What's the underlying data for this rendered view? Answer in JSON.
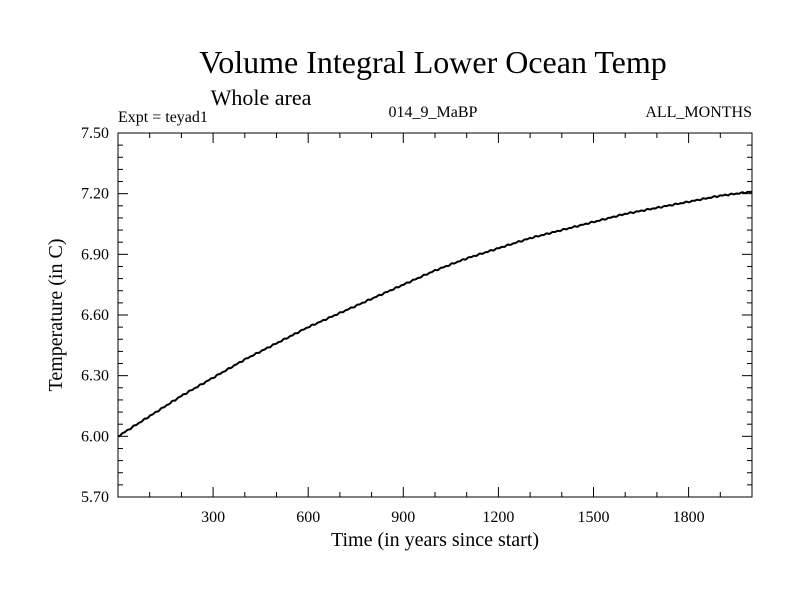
{
  "chart_data": {
    "type": "line",
    "title": "Volume Integral Lower Ocean Temp",
    "subtitle": "Whole area",
    "header_left": "Expt = teyad1",
    "header_center": "014_9_MaBP",
    "header_right": "ALL_MONTHS",
    "xlabel": "Time (in years since start)",
    "ylabel": "Temperature (in C)",
    "xlim": [
      0,
      2000
    ],
    "ylim": [
      5.7,
      7.5
    ],
    "x_ticks": [
      300,
      600,
      900,
      1200,
      1500,
      1800
    ],
    "x_tick_labels": [
      "300",
      "600",
      "900",
      "1200",
      "1500",
      "1800"
    ],
    "y_ticks": [
      5.7,
      6.0,
      6.3,
      6.6,
      6.9,
      7.2,
      7.5
    ],
    "y_tick_labels": [
      "5.70",
      "6.00",
      "6.30",
      "6.60",
      "6.90",
      "7.20",
      "7.50"
    ],
    "grid": false,
    "series": [
      {
        "name": "Volume Integral Lower Ocean Temp",
        "color": "#000000",
        "x": [
          0,
          100,
          200,
          300,
          400,
          500,
          600,
          700,
          800,
          900,
          1000,
          1100,
          1200,
          1300,
          1400,
          1500,
          1600,
          1700,
          1800,
          1900,
          2000
        ],
        "y": [
          6.0,
          6.1,
          6.2,
          6.29,
          6.38,
          6.46,
          6.54,
          6.61,
          6.68,
          6.75,
          6.82,
          6.88,
          6.93,
          6.98,
          7.02,
          7.06,
          7.1,
          7.13,
          7.16,
          7.19,
          7.21
        ]
      }
    ]
  }
}
